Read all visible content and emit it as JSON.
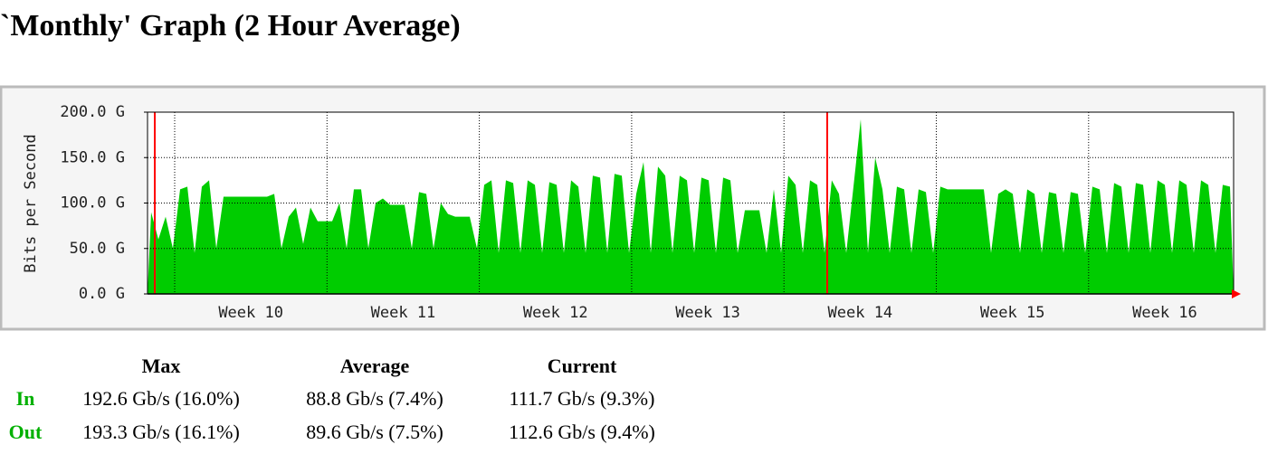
{
  "title": "`Monthly' Graph (2 Hour Average)",
  "chart_data": {
    "type": "area",
    "y_label": "Bits per Second",
    "color": "#00cc00",
    "grid": true,
    "x_labels": [
      "Week 10",
      "Week 11",
      "Week 12",
      "Week 13",
      "Week 14",
      "Week 15",
      "Week 16"
    ],
    "ylim": [
      0,
      200
    ],
    "yticks": [
      {
        "value": 0,
        "label": "0.0 G"
      },
      {
        "value": 50,
        "label": "50.0 G"
      },
      {
        "value": 100,
        "label": "100.0 G"
      },
      {
        "value": 150,
        "label": "150.0 G"
      },
      {
        "value": 200,
        "label": "200.0 G"
      }
    ],
    "values": [
      90,
      60,
      85,
      50,
      115,
      118,
      45,
      118,
      125,
      50,
      107,
      107,
      107,
      107,
      107,
      107,
      107,
      110,
      50,
      85,
      95,
      55,
      95,
      80,
      80,
      80,
      100,
      50,
      115,
      115,
      50,
      100,
      105,
      98,
      98,
      98,
      50,
      112,
      110,
      50,
      100,
      88,
      85,
      85,
      85,
      50,
      120,
      125,
      45,
      125,
      122,
      45,
      125,
      120,
      45,
      123,
      120,
      45,
      125,
      118,
      45,
      130,
      128,
      45,
      132,
      130,
      45,
      110,
      145,
      45,
      140,
      130,
      45,
      130,
      125,
      45,
      128,
      125,
      45,
      128,
      125,
      45,
      92,
      92,
      92,
      45,
      115,
      45,
      130,
      120,
      45,
      125,
      120,
      45,
      125,
      110,
      45,
      118,
      192,
      45,
      150,
      115,
      45,
      118,
      115,
      45,
      115,
      112,
      45,
      118,
      115,
      115,
      115,
      115,
      115,
      115,
      45,
      110,
      115,
      110,
      45,
      115,
      110,
      45,
      112,
      110,
      45,
      112,
      110,
      45,
      118,
      115,
      45,
      122,
      118,
      45,
      122,
      120,
      45,
      125,
      120,
      45,
      125,
      120,
      45,
      125,
      120,
      45,
      120,
      118
    ]
  },
  "stats": {
    "columns": [
      "Max",
      "Average",
      "Current"
    ],
    "rows": [
      {
        "label": "In",
        "cells": [
          "192.6 Gb/s (16.0%)",
          "88.8 Gb/s (7.4%)",
          "111.7 Gb/s (9.3%)"
        ]
      },
      {
        "label": "Out",
        "cells": [
          "193.3 Gb/s (16.1%)",
          "89.6 Gb/s (7.5%)",
          "112.6 Gb/s (9.4%)"
        ]
      }
    ]
  }
}
